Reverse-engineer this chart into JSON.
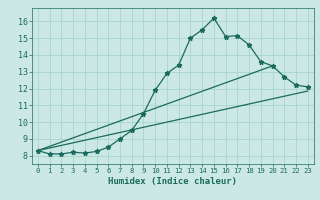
{
  "xlabel": "Humidex (Indice chaleur)",
  "bg_color": "#cce8e4",
  "grid_color": "#a8d4ce",
  "line_color": "#1a6b5e",
  "xlim": [
    -0.5,
    23.5
  ],
  "ylim": [
    7.5,
    16.8
  ],
  "xticks": [
    0,
    1,
    2,
    3,
    4,
    5,
    6,
    7,
    8,
    9,
    10,
    11,
    12,
    13,
    14,
    15,
    16,
    17,
    18,
    19,
    20,
    21,
    22,
    23
  ],
  "yticks": [
    8,
    9,
    10,
    11,
    12,
    13,
    14,
    15,
    16
  ],
  "main_x": [
    0,
    1,
    2,
    3,
    4,
    5,
    6,
    7,
    8,
    9,
    10,
    11,
    12,
    13,
    14,
    15,
    16,
    17,
    18,
    19,
    20,
    21,
    22,
    23
  ],
  "main_y": [
    8.3,
    8.1,
    8.1,
    8.2,
    8.15,
    8.25,
    8.5,
    9.0,
    9.5,
    10.5,
    11.9,
    12.9,
    13.4,
    15.0,
    15.5,
    16.2,
    15.1,
    15.15,
    14.6,
    13.6,
    13.35,
    12.7,
    12.2,
    12.1
  ],
  "line2_x": [
    0,
    23
  ],
  "line2_y": [
    8.3,
    11.85
  ],
  "line3_x": [
    0,
    20
  ],
  "line3_y": [
    8.3,
    13.35
  ]
}
